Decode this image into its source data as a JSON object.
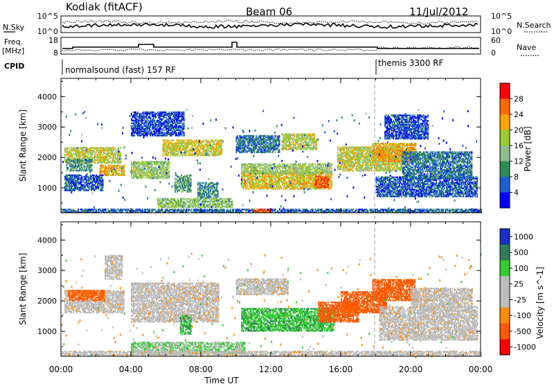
{
  "header": {
    "station": "Kodiak (fitACF)",
    "beam": "Beam 06",
    "date": "11/Jul/2012"
  },
  "status_panels": {
    "noise": {
      "left_label": "N.Sky",
      "right_label": "N.Search",
      "left_ticks": [
        "10^5",
        "10^0"
      ],
      "right_ticks": [
        "10^5",
        "10^0"
      ]
    },
    "frequency": {
      "left_label_top": "Freq.",
      "left_label_bottom": "[MHz]",
      "right_label": "Nave",
      "left_ticks": [
        "18",
        "8"
      ],
      "right_ticks": [
        "60",
        "0"
      ]
    },
    "cpid": {
      "label": "CPID",
      "segments": [
        {
          "start_hour": 0,
          "end_hour": 18,
          "name": "normalsound (fast) 157 RF"
        },
        {
          "start_hour": 18,
          "end_hour": 24,
          "name": "themis 3300 RF"
        }
      ]
    }
  },
  "chart_data": [
    {
      "type": "heatmap",
      "panel": "power",
      "ylabel": "Slant Range [km]",
      "xlabel": "Time UT",
      "xlim": [
        0,
        24
      ],
      "ylim": [
        180,
        4600
      ],
      "y_ticks": [
        1000,
        2000,
        3000,
        4000
      ],
      "x_tick_labels": [
        "00:00",
        "04:00",
        "08:00",
        "12:00",
        "16:00",
        "20:00",
        "00:00"
      ],
      "colorbar": {
        "label": "Power [dB]",
        "tick_labels": [
          "4",
          "8",
          "12",
          "16",
          "20",
          "24",
          "28"
        ],
        "colors": [
          "#0000ff",
          "#1f5fd0",
          "#2e8b57",
          "#8fbc8f",
          "#9acd32",
          "#ffa500",
          "#ff6a00",
          "#ff0000"
        ]
      },
      "regions": [
        {
          "t0": 0.2,
          "t1": 3.4,
          "r0": 1800,
          "r1": 2300,
          "v": 18
        },
        {
          "t0": 0.3,
          "t1": 1.8,
          "r0": 1550,
          "r1": 1950,
          "v": 11
        },
        {
          "t0": 2.2,
          "t1": 3.6,
          "r0": 1400,
          "r1": 1750,
          "v": 22
        },
        {
          "t0": 0.2,
          "t1": 2.4,
          "r0": 900,
          "r1": 1400,
          "v": 6
        },
        {
          "t0": 4.0,
          "t1": 6.2,
          "r0": 1300,
          "r1": 1850,
          "v": 16
        },
        {
          "t0": 5.8,
          "t1": 9.2,
          "r0": 2050,
          "r1": 2550,
          "v": 19
        },
        {
          "t0": 6.5,
          "t1": 7.4,
          "r0": 850,
          "r1": 1400,
          "v": 12
        },
        {
          "t0": 7.8,
          "t1": 9.0,
          "r0": 650,
          "r1": 1150,
          "v": 10
        },
        {
          "t0": 5.5,
          "t1": 9.8,
          "r0": 350,
          "r1": 650,
          "v": 15
        },
        {
          "t0": 4.0,
          "t1": 7.0,
          "r0": 2700,
          "r1": 3500,
          "v": 5
        },
        {
          "t0": 10.0,
          "t1": 12.5,
          "r0": 2150,
          "r1": 2700,
          "v": 8
        },
        {
          "t0": 12.6,
          "t1": 14.6,
          "r0": 2250,
          "r1": 2750,
          "v": 17
        },
        {
          "t0": 10.3,
          "t1": 15.5,
          "r0": 950,
          "r1": 1500,
          "v": 20
        },
        {
          "t0": 10.3,
          "t1": 15.5,
          "r0": 1450,
          "r1": 1800,
          "v": 16
        },
        {
          "t0": 14.5,
          "t1": 15.3,
          "r0": 1000,
          "r1": 1400,
          "v": 27
        },
        {
          "t0": 15.8,
          "t1": 19.5,
          "r0": 1550,
          "r1": 2350,
          "v": 18
        },
        {
          "t0": 17.8,
          "t1": 20.3,
          "r0": 1850,
          "r1": 2450,
          "v": 22
        },
        {
          "t0": 18.0,
          "t1": 23.8,
          "r0": 700,
          "r1": 1350,
          "v": 6
        },
        {
          "t0": 19.5,
          "t1": 23.5,
          "r0": 1300,
          "r1": 2200,
          "v": 8
        },
        {
          "t0": 18.5,
          "t1": 21.0,
          "r0": 2600,
          "r1": 3400,
          "v": 5
        },
        {
          "t0": 0.0,
          "t1": 24.0,
          "r0": 180,
          "r1": 300,
          "v": 7
        },
        {
          "t0": 11.0,
          "t1": 12.0,
          "r0": 180,
          "r1": 300,
          "v": 28
        }
      ]
    },
    {
      "type": "heatmap",
      "panel": "velocity",
      "ylabel": "Slant Range [km]",
      "xlabel": "Time UT",
      "xlim": [
        0,
        24
      ],
      "ylim": [
        180,
        4600
      ],
      "y_ticks": [
        1000,
        2000,
        3000,
        4000
      ],
      "x_tick_labels": [
        "00:00",
        "04:00",
        "08:00",
        "12:00",
        "16:00",
        "20:00",
        "00:00"
      ],
      "colorbar": {
        "label": "Velocity [m s^-1]",
        "tick_labels": [
          "1000",
          "500",
          "100",
          "25",
          "-25",
          "-100",
          "-500",
          "-1000"
        ],
        "colors": [
          "#1a2ec8",
          "#2e7d5a",
          "#33cc33",
          "#bcbcbc",
          "#bcbcbc",
          "#ff8c00",
          "#ff5a00",
          "#ff0000"
        ]
      },
      "regions": [
        {
          "t0": 0.2,
          "t1": 3.6,
          "r0": 1600,
          "r1": 2350,
          "v": 0
        },
        {
          "t0": 0.4,
          "t1": 2.5,
          "r0": 2000,
          "r1": 2350,
          "v": -150
        },
        {
          "t0": 4.0,
          "t1": 9.0,
          "r0": 1300,
          "r1": 2600,
          "v": 0
        },
        {
          "t0": 6.8,
          "t1": 7.4,
          "r0": 900,
          "r1": 1500,
          "v": 250
        },
        {
          "t0": 4.0,
          "t1": 10.5,
          "r0": 250,
          "r1": 650,
          "v": 60
        },
        {
          "t0": 2.5,
          "t1": 3.5,
          "r0": 2700,
          "r1": 3500,
          "v": 0
        },
        {
          "t0": 10.0,
          "t1": 13.0,
          "r0": 2200,
          "r1": 2700,
          "v": 0
        },
        {
          "t0": 10.3,
          "t1": 15.6,
          "r0": 1000,
          "r1": 1750,
          "v": 250
        },
        {
          "t0": 14.7,
          "t1": 17.0,
          "r0": 1300,
          "r1": 1950,
          "v": -200
        },
        {
          "t0": 16.0,
          "t1": 18.6,
          "r0": 1600,
          "r1": 2300,
          "v": -200
        },
        {
          "t0": 17.8,
          "t1": 20.2,
          "r0": 2000,
          "r1": 2700,
          "v": -200
        },
        {
          "t0": 18.2,
          "t1": 23.8,
          "r0": 700,
          "r1": 1800,
          "v": 0
        },
        {
          "t0": 20.0,
          "t1": 23.5,
          "r0": 1800,
          "r1": 2400,
          "v": 0
        },
        {
          "t0": 0.0,
          "t1": 24.0,
          "r0": 180,
          "r1": 320,
          "v": 0
        }
      ]
    }
  ]
}
